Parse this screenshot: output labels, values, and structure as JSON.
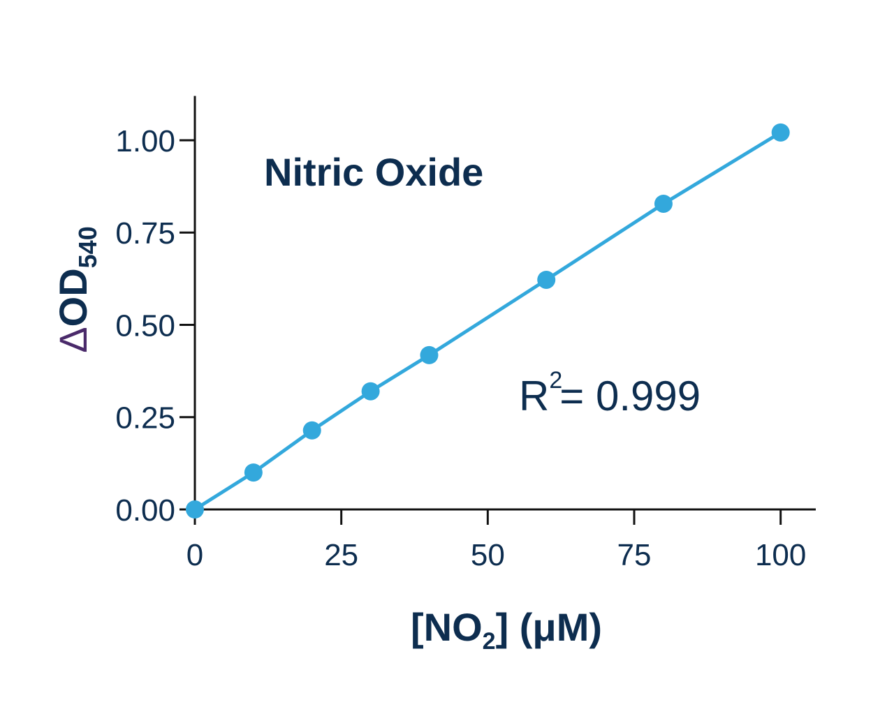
{
  "chart_data": {
    "type": "line",
    "title": "Nitric Oxide",
    "x_label": {
      "prefix": "[NO",
      "sub": "2",
      "suffix": "] (μM)"
    },
    "y_label": {
      "symbol": "Δ",
      "main": "OD",
      "sub": "540"
    },
    "annotation": {
      "text": "R",
      "sup": "2",
      "rest": "= 0.999"
    },
    "x": [
      0,
      10,
      20,
      30,
      40,
      60,
      80,
      100
    ],
    "series": [
      {
        "color": "#33a8dc",
        "values": [
          0,
          0.1,
          0.214,
          0.32,
          0.418,
          0.622,
          0.828,
          1.021
        ]
      }
    ],
    "xlim": [
      0,
      106
    ],
    "ylim": [
      0,
      1.12
    ],
    "xticks": [
      0,
      25,
      50,
      75,
      100
    ],
    "yticks": [
      {
        "value": 0,
        "label": "0.00"
      },
      {
        "value": 0.25,
        "label": "0.25"
      },
      {
        "value": 0.5,
        "label": "0.50"
      },
      {
        "value": 0.75,
        "label": "0.75"
      },
      {
        "value": 1,
        "label": "1.00"
      }
    ],
    "axis_color": "#111111",
    "text_color": "#0d2d4f",
    "symbol_color": "#4a2a6a"
  }
}
